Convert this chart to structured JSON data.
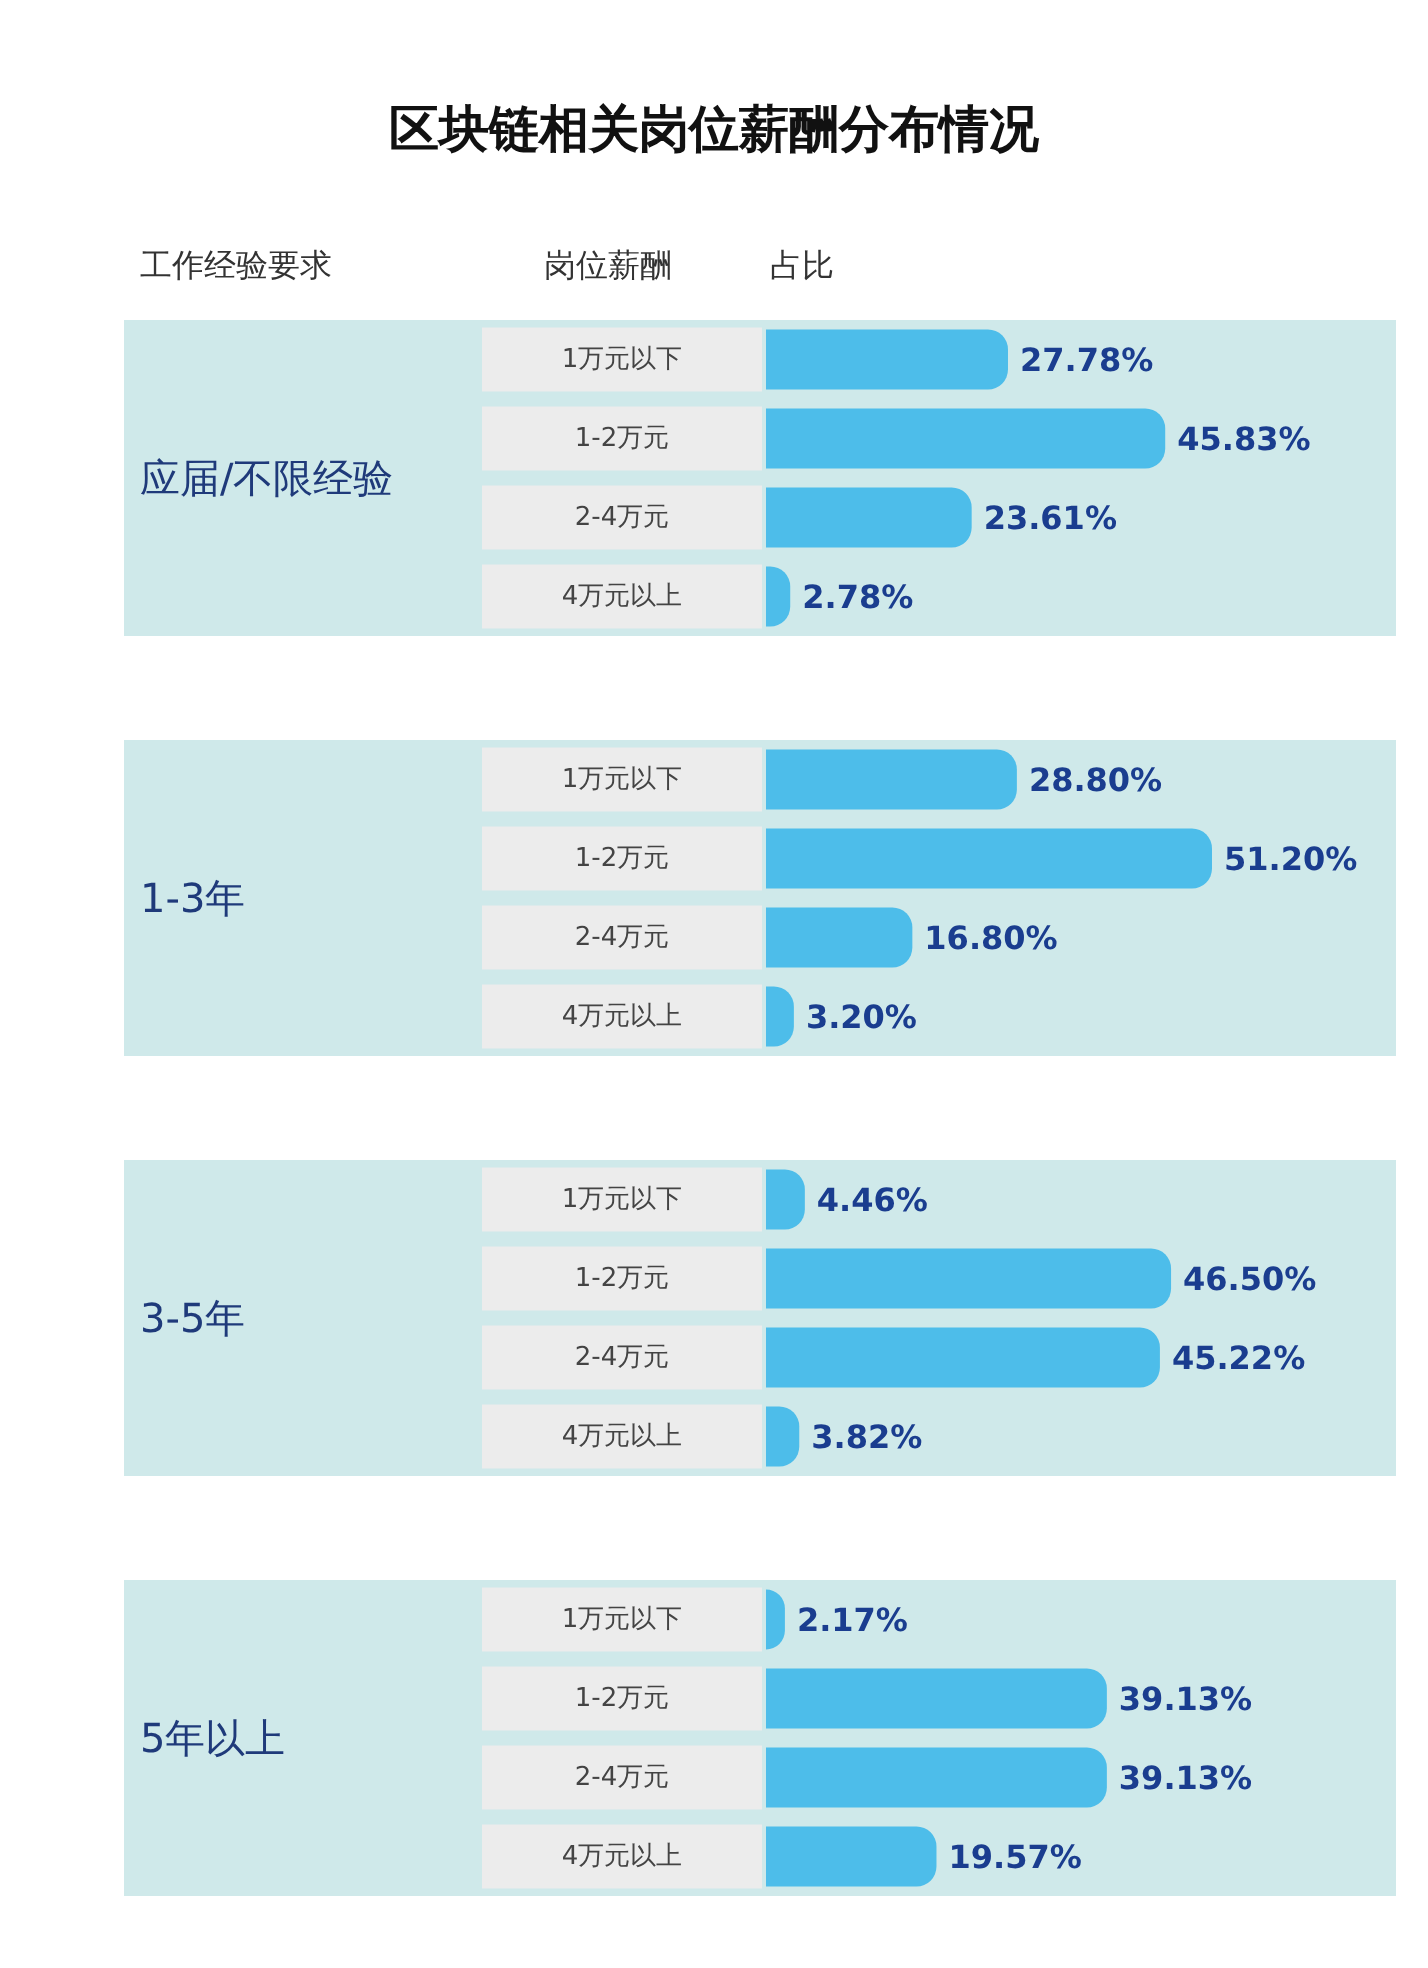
{
  "chart_data": [
    {
      "type": "bar",
      "orientation": "horizontal",
      "title": "区块链相关岗位薪酬分布情况",
      "annotations": [
        "工作经验要求",
        "岗位薪酬",
        "占比"
      ],
      "ylabel": "应届/不限经验",
      "categories": [
        "1万元以下",
        "1-2万元",
        "2-4万元",
        "4万元以上"
      ],
      "values": [
        27.78,
        45.83,
        23.61,
        2.78
      ],
      "value_labels": [
        "27.78%",
        "45.83%",
        "23.61%",
        "2.78%"
      ],
      "color": "#4dbdea"
    },
    {
      "type": "bar",
      "orientation": "horizontal",
      "ylabel": "1-3年",
      "categories": [
        "1万元以下",
        "1-2万元",
        "2-4万元",
        "4万元以上"
      ],
      "values": [
        28.8,
        51.2,
        16.8,
        3.2
      ],
      "value_labels": [
        "28.80%",
        "51.20%",
        "16.80%",
        "3.20%"
      ],
      "color": "#4dbdea"
    },
    {
      "type": "bar",
      "orientation": "horizontal",
      "ylabel": "3-5年",
      "categories": [
        "1万元以下",
        "1-2万元",
        "2-4万元",
        "4万元以上"
      ],
      "values": [
        4.46,
        46.5,
        45.22,
        3.82
      ],
      "value_labels": [
        "4.46%",
        "46.50%",
        "45.22%",
        "3.82%"
      ],
      "color": "#4dbdea"
    },
    {
      "type": "bar",
      "orientation": "horizontal",
      "ylabel": "5年以上",
      "categories": [
        "1万元以下",
        "1-2万元",
        "2-4万元",
        "4万元以上"
      ],
      "values": [
        2.17,
        39.13,
        39.13,
        19.57
      ],
      "value_labels": [
        "2.17%",
        "39.13%",
        "39.13%",
        "19.57%"
      ],
      "color": "#4dbdea"
    }
  ]
}
